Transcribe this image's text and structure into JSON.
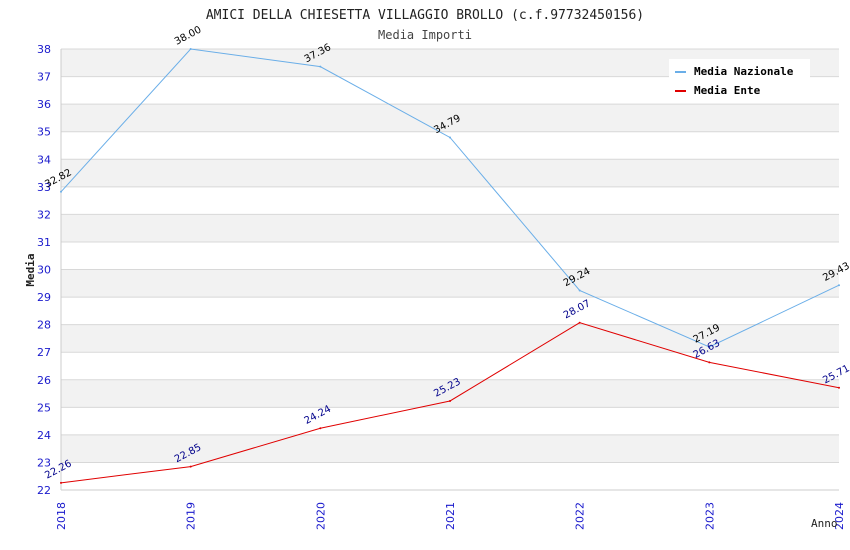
{
  "chart_data": {
    "type": "line",
    "title": "AMICI DELLA CHIESETTA VILLAGGIO BROLLO (c.f.97732450156)",
    "subtitle": "Media Importi",
    "xlabel": "Anno",
    "ylabel": "Media",
    "x": [
      "2018",
      "2019",
      "2020",
      "2021",
      "2022",
      "2023",
      "2024"
    ],
    "ylim": [
      22,
      38
    ],
    "yticks": [
      "22",
      "23",
      "24",
      "25",
      "26",
      "27",
      "28",
      "29",
      "30",
      "31",
      "32",
      "33",
      "34",
      "35",
      "36",
      "37",
      "38"
    ],
    "grid": true,
    "legend_position": "top-right",
    "series": [
      {
        "name": "Media Nazionale",
        "color": "#6aaee8",
        "label_color": "#000000",
        "values": [
          32.82,
          38.0,
          37.36,
          34.79,
          29.24,
          27.19,
          29.43
        ],
        "labels": [
          "32.82",
          "38.00",
          "37.36",
          "34.79",
          "29.24",
          "27.19",
          "29.43"
        ]
      },
      {
        "name": "Media Ente",
        "color": "#e00000",
        "label_color": "#00008b",
        "values": [
          22.26,
          22.85,
          24.24,
          25.23,
          28.07,
          26.63,
          25.71
        ],
        "labels": [
          "22.26",
          "22.85",
          "24.24",
          "25.23",
          "28.07",
          "26.63",
          "25.71"
        ]
      }
    ]
  }
}
